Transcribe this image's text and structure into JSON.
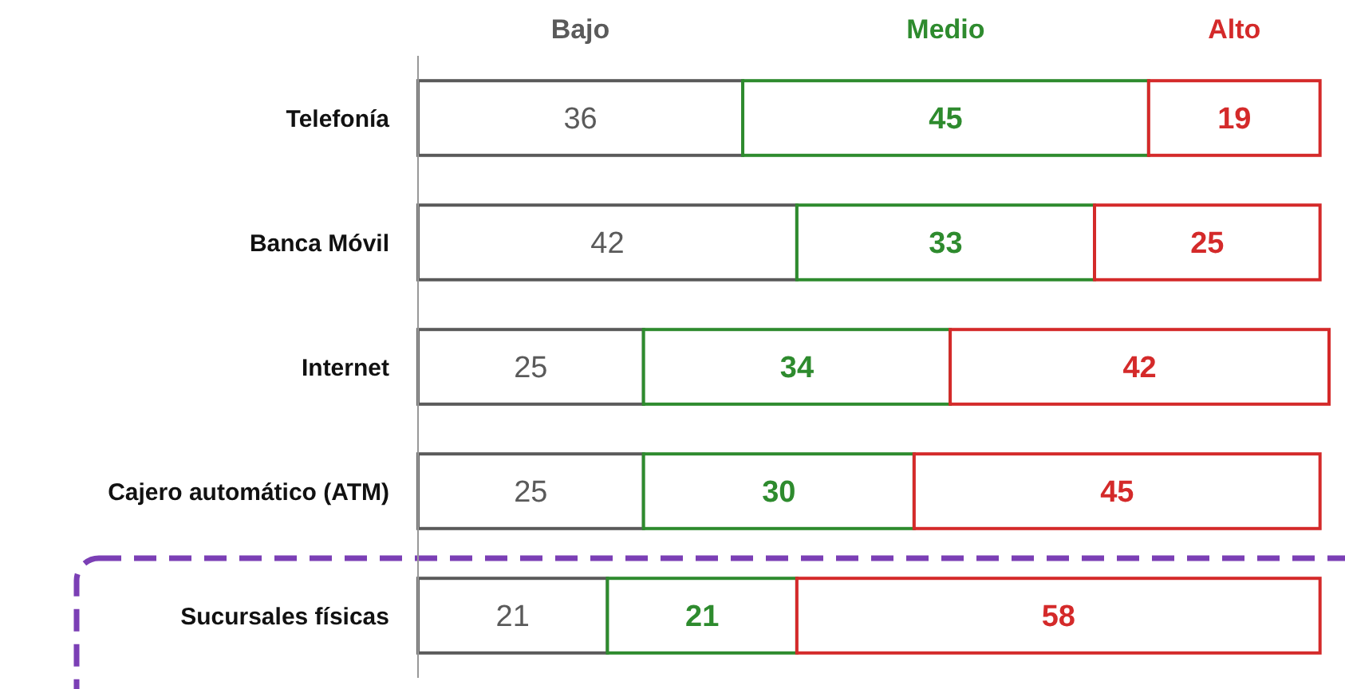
{
  "chart_data": {
    "type": "bar",
    "orientation": "horizontal",
    "stacked": true,
    "data_labels": true,
    "legend": "top",
    "grid": false,
    "tick_labels": "y",
    "categories": [
      "Telefonía",
      "Banca Móvil",
      "Internet",
      "Cajero automático (ATM)",
      "Sucursales físicas"
    ],
    "series": [
      {
        "name": "Bajo",
        "color": "#5a5a5a",
        "values": [
          36,
          42,
          25,
          25,
          21
        ]
      },
      {
        "name": "Medio",
        "color": "#2e8b2e",
        "values": [
          45,
          33,
          34,
          30,
          21
        ]
      },
      {
        "name": "Alto",
        "color": "#d42a2a",
        "values": [
          19,
          25,
          42,
          45,
          58
        ]
      }
    ]
  }
}
